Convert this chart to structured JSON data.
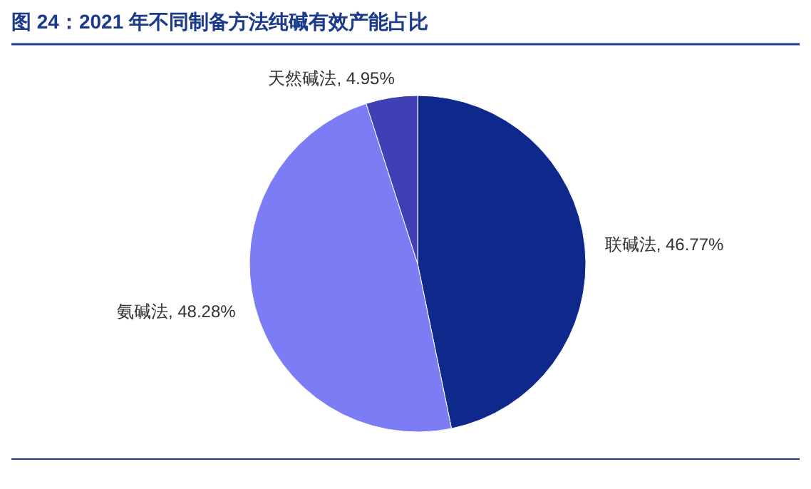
{
  "chart_data": {
    "type": "pie",
    "title": "图 24：2021 年不同制备方法纯碱有效产能占比",
    "categories": [
      "联碱法",
      "氨碱法",
      "天然碱法"
    ],
    "values": [
      46.77,
      48.28,
      4.95
    ],
    "value_labels": [
      "46.77%",
      "48.28%",
      "4.95%"
    ],
    "colors": [
      "#0f288c",
      "#7c7cf4",
      "#3f3fb6"
    ]
  }
}
